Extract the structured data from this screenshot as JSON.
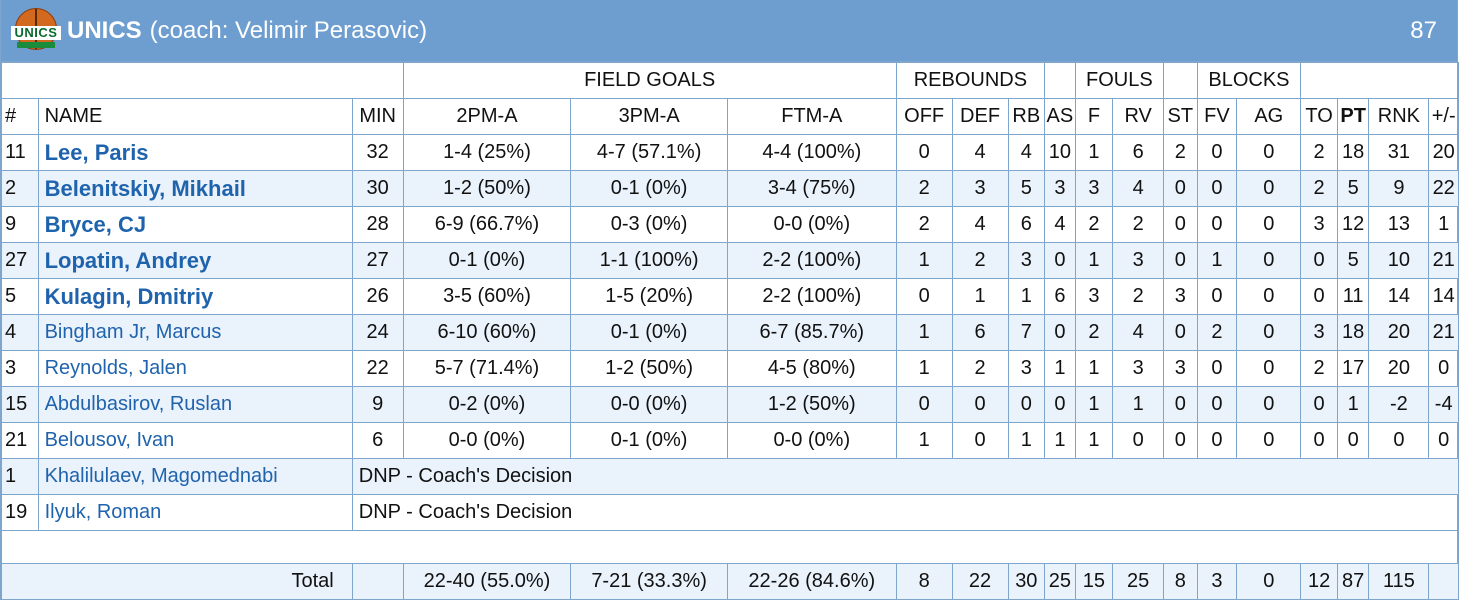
{
  "header": {
    "logo_text": "UNICS",
    "team": "UNICS",
    "coach": "(coach: Velimir Perasovic)",
    "score": "87"
  },
  "groups": {
    "field_goals": "FIELD GOALS",
    "rebounds": "REBOUNDS",
    "fouls": "FOULS",
    "blocks": "BLOCKS"
  },
  "columns": [
    "#",
    "NAME",
    "MIN",
    "2PM-A",
    "3PM-A",
    "FTM-A",
    "OFF",
    "DEF",
    "RB",
    "AS",
    "F",
    "RV",
    "ST",
    "FV",
    "AG",
    "TO",
    "PT",
    "RNK",
    "+/-"
  ],
  "players": [
    {
      "num": "11",
      "name": "Lee, Paris",
      "starter": true,
      "min": "32",
      "p2": "1-4 (25%)",
      "p3": "4-7 (57.1%)",
      "ft": "4-4 (100%)",
      "off": "0",
      "def": "4",
      "rb": "4",
      "as": "10",
      "f": "1",
      "rv": "6",
      "st": "2",
      "fv": "0",
      "ag": "0",
      "to": "2",
      "pt": "18",
      "rnk": "31",
      "pm": "20"
    },
    {
      "num": "2",
      "name": "Belenitskiy, Mikhail",
      "starter": true,
      "min": "30",
      "p2": "1-2 (50%)",
      "p3": "0-1 (0%)",
      "ft": "3-4 (75%)",
      "off": "2",
      "def": "3",
      "rb": "5",
      "as": "3",
      "f": "3",
      "rv": "4",
      "st": "0",
      "fv": "0",
      "ag": "0",
      "to": "2",
      "pt": "5",
      "rnk": "9",
      "pm": "22"
    },
    {
      "num": "9",
      "name": "Bryce, CJ",
      "starter": true,
      "min": "28",
      "p2": "6-9 (66.7%)",
      "p3": "0-3 (0%)",
      "ft": "0-0 (0%)",
      "off": "2",
      "def": "4",
      "rb": "6",
      "as": "4",
      "f": "2",
      "rv": "2",
      "st": "0",
      "fv": "0",
      "ag": "0",
      "to": "3",
      "pt": "12",
      "rnk": "13",
      "pm": "1"
    },
    {
      "num": "27",
      "name": "Lopatin, Andrey",
      "starter": true,
      "min": "27",
      "p2": "0-1 (0%)",
      "p3": "1-1 (100%)",
      "ft": "2-2 (100%)",
      "off": "1",
      "def": "2",
      "rb": "3",
      "as": "0",
      "f": "1",
      "rv": "3",
      "st": "0",
      "fv": "1",
      "ag": "0",
      "to": "0",
      "pt": "5",
      "rnk": "10",
      "pm": "21"
    },
    {
      "num": "5",
      "name": "Kulagin, Dmitriy",
      "starter": true,
      "min": "26",
      "p2": "3-5 (60%)",
      "p3": "1-5 (20%)",
      "ft": "2-2 (100%)",
      "off": "0",
      "def": "1",
      "rb": "1",
      "as": "6",
      "f": "3",
      "rv": "2",
      "st": "3",
      "fv": "0",
      "ag": "0",
      "to": "0",
      "pt": "11",
      "rnk": "14",
      "pm": "14"
    },
    {
      "num": "4",
      "name": "Bingham Jr, Marcus",
      "starter": false,
      "min": "24",
      "p2": "6-10 (60%)",
      "p3": "0-1 (0%)",
      "ft": "6-7 (85.7%)",
      "off": "1",
      "def": "6",
      "rb": "7",
      "as": "0",
      "f": "2",
      "rv": "4",
      "st": "0",
      "fv": "2",
      "ag": "0",
      "to": "3",
      "pt": "18",
      "rnk": "20",
      "pm": "21"
    },
    {
      "num": "3",
      "name": "Reynolds, Jalen",
      "starter": false,
      "min": "22",
      "p2": "5-7 (71.4%)",
      "p3": "1-2 (50%)",
      "ft": "4-5 (80%)",
      "off": "1",
      "def": "2",
      "rb": "3",
      "as": "1",
      "f": "1",
      "rv": "3",
      "st": "3",
      "fv": "0",
      "ag": "0",
      "to": "2",
      "pt": "17",
      "rnk": "20",
      "pm": "0"
    },
    {
      "num": "15",
      "name": "Abdulbasirov, Ruslan",
      "starter": false,
      "min": "9",
      "p2": "0-2 (0%)",
      "p3": "0-0 (0%)",
      "ft": "1-2 (50%)",
      "off": "0",
      "def": "0",
      "rb": "0",
      "as": "0",
      "f": "1",
      "rv": "1",
      "st": "0",
      "fv": "0",
      "ag": "0",
      "to": "0",
      "pt": "1",
      "rnk": "-2",
      "pm": "-4"
    },
    {
      "num": "21",
      "name": "Belousov, Ivan",
      "starter": false,
      "min": "6",
      "p2": "0-0 (0%)",
      "p3": "0-1 (0%)",
      "ft": "0-0 (0%)",
      "off": "1",
      "def": "0",
      "rb": "1",
      "as": "1",
      "f": "1",
      "rv": "0",
      "st": "0",
      "fv": "0",
      "ag": "0",
      "to": "0",
      "pt": "0",
      "rnk": "0",
      "pm": "0"
    }
  ],
  "dnp": [
    {
      "num": "1",
      "name": "Khalilulaev, Magomednabi",
      "note": "DNP - Coach's Decision"
    },
    {
      "num": "19",
      "name": "Ilyuk, Roman",
      "note": "DNP - Coach's Decision"
    }
  ],
  "totals": {
    "label": "Total",
    "p2": "22-40 (55.0%)",
    "p3": "7-21 (33.3%)",
    "ft": "22-26 (84.6%)",
    "off": "8",
    "def": "22",
    "rb": "30",
    "as": "25",
    "f": "15",
    "rv": "25",
    "st": "8",
    "fv": "3",
    "ag": "0",
    "to": "12",
    "pt": "87",
    "rnk": "115"
  }
}
